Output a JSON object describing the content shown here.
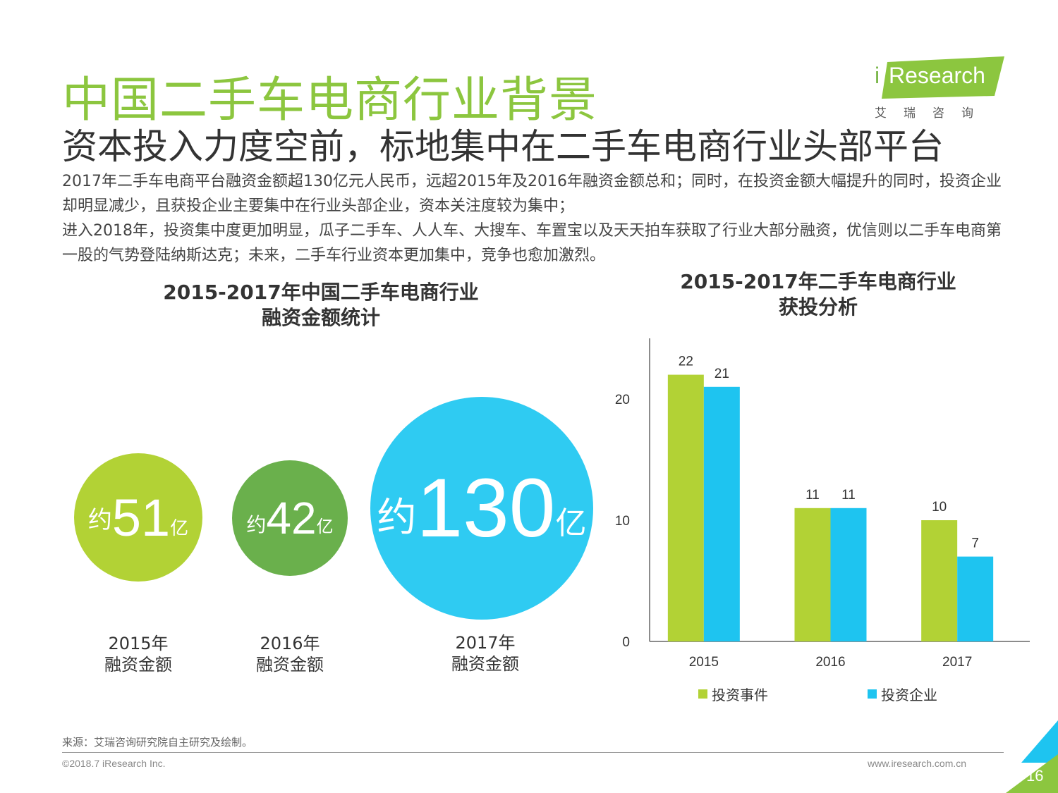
{
  "header": {
    "title": "中国二手车电商行业背景",
    "subtitle": "资本投入力度空前，标地集中在二手车电商行业头部平台",
    "body": [
      "2017年二手车电商平台融资金额超130亿元人民币，远超2015年及2016年融资金额总和；同时，在投资金额大幅提升的同时，投资企业却明显减少，且获投企业主要集中在行业头部企业，资本关注度较为集中；",
      "进入2018年，投资集中度更加明显，瓜子二手车、人人车、大搜车、车置宝以及天天拍车获取了行业大部分融资，优信则以二手车电商第一股的气势登陆纳斯达克；未来，二手车行业资本更加集中，竞争也愈加激烈。"
    ]
  },
  "logo": {
    "brand": "Research",
    "brand_i": "i",
    "tagline": "艾瑞咨询"
  },
  "colors": {
    "green": "#b2d235",
    "dark_green": "#6ab04c",
    "blue": "#1ec4f0",
    "title_green": "#8cc63f"
  },
  "chart_data": [
    {
      "type": "bubble",
      "title": "2015-2017年中国二手车电商行业融资金额统计",
      "title_lines": [
        "2015-2017年中国二手车电商行业",
        "融资金额统计"
      ],
      "prefix": "约",
      "suffix": "亿",
      "items": [
        {
          "year_label": "2015年",
          "caption": "融资金额",
          "value": 51,
          "value_text": "51",
          "color": "#b2d235"
        },
        {
          "year_label": "2016年",
          "caption": "融资金额",
          "value": 42,
          "value_text": "42",
          "color": "#6ab04c"
        },
        {
          "year_label": "2017年",
          "caption": "融资金额",
          "value": 130,
          "value_text": "130",
          "color": "#2fcbf2"
        }
      ]
    },
    {
      "type": "bar",
      "title": "2015-2017年二手车电商行业获投分析",
      "title_lines": [
        "2015-2017年二手车电商行业",
        "获投分析"
      ],
      "categories": [
        "2015",
        "2016",
        "2017"
      ],
      "series": [
        {
          "name": "投资事件",
          "values": [
            22,
            11,
            10
          ],
          "color": "#b2d235"
        },
        {
          "name": "投资企业",
          "values": [
            21,
            11,
            7
          ],
          "color": "#1ec4f0"
        }
      ],
      "ylim": [
        0,
        25
      ],
      "yticks": [
        0,
        10,
        20
      ],
      "legend": "bottom"
    }
  ],
  "footer": {
    "source": "来源：艾瑞咨询研究院自主研究及绘制。",
    "copyright": "©2018.7 iResearch Inc.",
    "website": "www.iresearch.com.cn",
    "page": "16"
  }
}
